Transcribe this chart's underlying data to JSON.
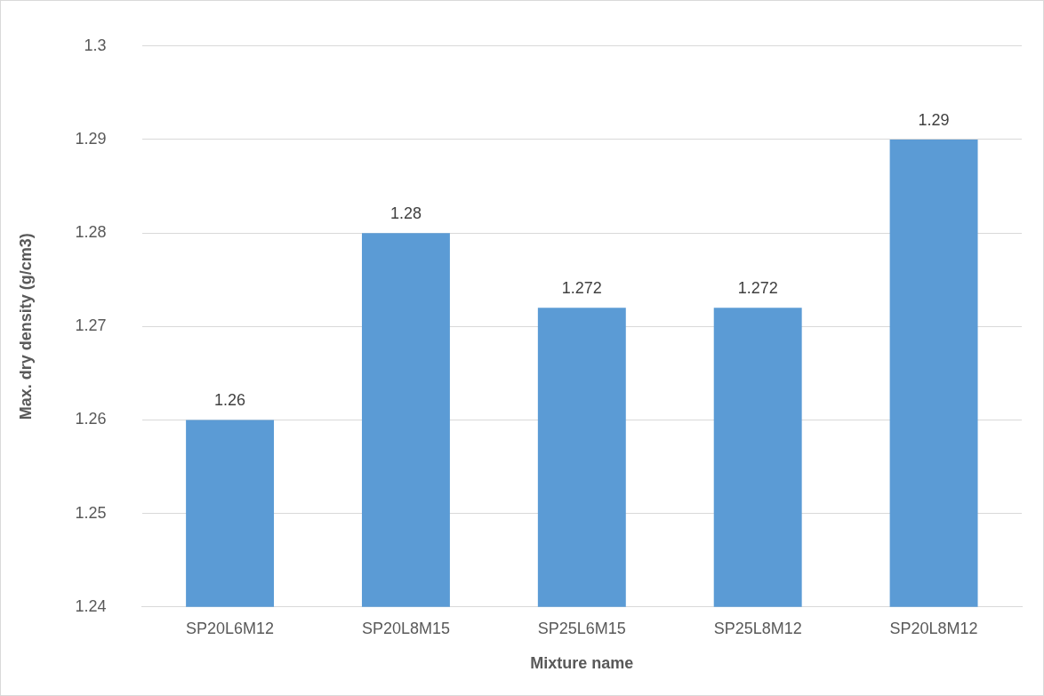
{
  "chart_data": {
    "type": "bar",
    "xlabel": "Mixture name",
    "ylabel": "Max. dry density (g/cm3)",
    "categories": [
      "SP20L6M12",
      "SP20L8M15",
      "SP25L6M15",
      "SP25L8M12",
      "SP20L8M12"
    ],
    "values": [
      1.26,
      1.28,
      1.272,
      1.272,
      1.29
    ],
    "color": "#5b9bd5",
    "ylim": [
      1.24,
      1.3
    ],
    "yticks": [
      1.24,
      1.25,
      1.26,
      1.27,
      1.28,
      1.29,
      1.3
    ],
    "grid": "y",
    "data_labels": true,
    "legend": false
  }
}
